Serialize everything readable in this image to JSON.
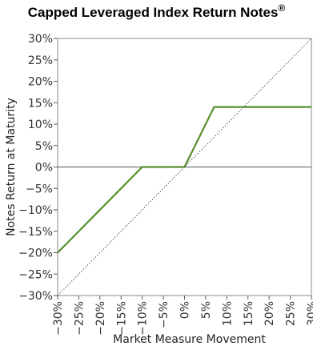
{
  "title": "Capped Leveraged Index Return Notes",
  "title_mark": "®",
  "chart_data": {
    "type": "line",
    "title": "Capped Leveraged Index Return Notes®",
    "xlabel": "Market Measure Movement",
    "ylabel": "Notes Return at Maturity",
    "xlim": [
      -30,
      30
    ],
    "ylim": [
      -30,
      30
    ],
    "x_ticks": [
      "−30%",
      "−25%",
      "−20%",
      "−15%",
      "−10%",
      "−5%",
      "0%",
      "5%",
      "10%",
      "15%",
      "20%",
      "25%",
      "30%"
    ],
    "y_ticks": [
      "30%",
      "25%",
      "20%",
      "15%",
      "10%",
      "5%",
      "0%",
      "−5%",
      "−10%",
      "−15%",
      "−20%",
      "−25%",
      "−30%"
    ],
    "grid": false,
    "series": [
      {
        "color": "#5a8f2e",
        "style": "solid",
        "x": [
          -30,
          -10,
          0,
          7,
          30
        ],
        "y": [
          -20,
          0,
          0,
          14,
          14
        ]
      },
      {
        "color": "#555555",
        "style": "dotted",
        "x": [
          -30,
          30
        ],
        "y": [
          -30,
          30
        ]
      }
    ]
  }
}
